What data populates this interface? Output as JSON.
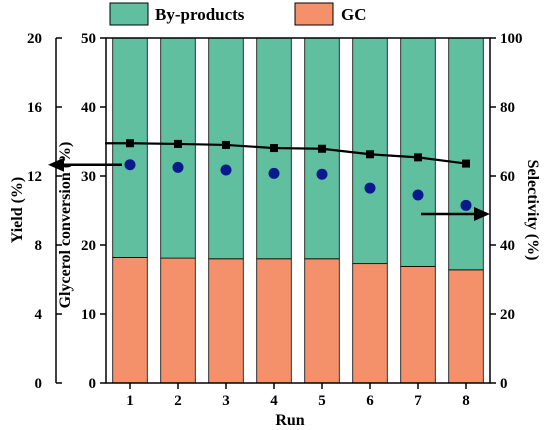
{
  "chart_data": {
    "type": "bar",
    "categories": [
      "1",
      "2",
      "3",
      "4",
      "5",
      "6",
      "7",
      "8"
    ],
    "xlabel": "Run",
    "axes": {
      "yield": {
        "label": "Yield (%)",
        "range": [
          0,
          20
        ],
        "ticks": [
          "0",
          "4",
          "8",
          "12",
          "16",
          "20"
        ]
      },
      "conversion": {
        "label": "Glycerol conversion (%)",
        "range": [
          0,
          50
        ],
        "ticks": [
          "0",
          "10",
          "20",
          "30",
          "40",
          "50"
        ]
      },
      "selectivity": {
        "label": "Selectivity (%)",
        "range": [
          0,
          100
        ],
        "ticks": [
          "0",
          "20",
          "40",
          "60",
          "80",
          "100"
        ]
      }
    },
    "series": [
      {
        "name": "GC",
        "kind": "stacked-bar",
        "axis": "conversion",
        "color": "#f5916a",
        "values": [
          18.2,
          18.1,
          18.0,
          18.0,
          18.0,
          17.3,
          16.9,
          16.4
        ]
      },
      {
        "name": "By-products",
        "kind": "stacked-bar",
        "axis": "conversion",
        "color": "#5fbf9f",
        "values": [
          31.8,
          31.9,
          32.0,
          32.0,
          32.0,
          32.7,
          33.1,
          33.6
        ]
      },
      {
        "kind": "line",
        "axis": "selectivity",
        "marker": "square",
        "color": "#000000",
        "values": [
          69.5,
          69.3,
          69.0,
          68.1,
          67.9,
          66.3,
          65.4,
          63.6
        ]
      },
      {
        "kind": "scatter",
        "axis": "yield",
        "marker": "circle",
        "color": "#0a1a8c",
        "values": [
          12.65,
          12.5,
          12.35,
          12.15,
          12.1,
          11.3,
          10.9,
          10.3
        ]
      }
    ],
    "legend": {
      "placement": "top",
      "entries": [
        {
          "label": "By-products",
          "color": "#5fbf9f"
        },
        {
          "label": "GC",
          "color": "#f5916a"
        }
      ]
    }
  }
}
